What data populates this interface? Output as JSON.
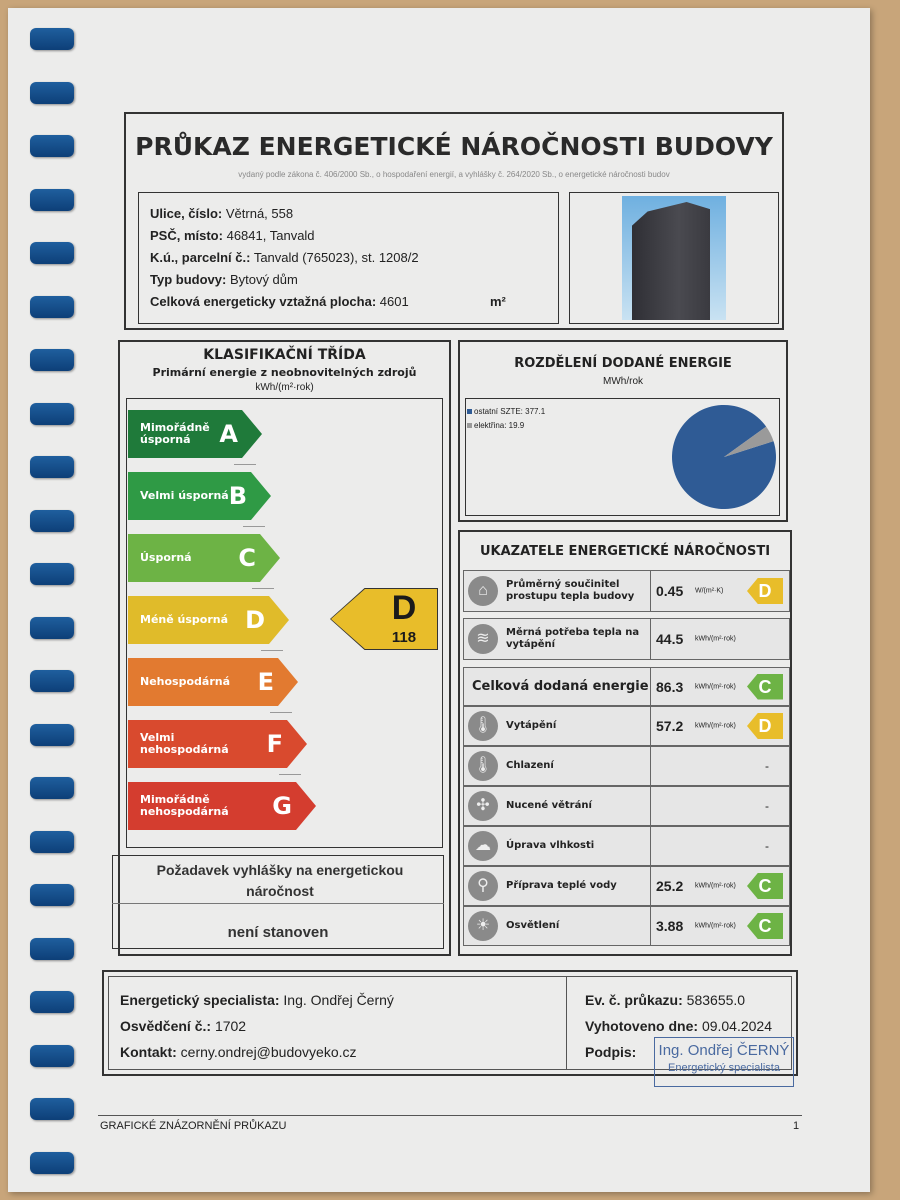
{
  "header": {
    "title": "PRŮKAZ ENERGETICKÉ NÁROČNOSTI BUDOVY",
    "subtitle": "vydaný podle zákona č. 406/2000 Sb., o hospodaření energií, a vyhlášky č. 264/2020 Sb., o energetické náročnosti budov"
  },
  "info": [
    {
      "label": "Ulice, číslo:",
      "value": "Větrná, 558"
    },
    {
      "label": "PSČ, místo:",
      "value": "46841, Tanvald"
    },
    {
      "label": "K.ú., parcelní č.:",
      "value": "Tanvald (765023), st. 1208/2"
    },
    {
      "label": "Typ budovy:",
      "value": "Bytový dům"
    },
    {
      "label": "Celková energeticky vztažná plocha:",
      "value": "4601",
      "unit": "m²"
    }
  ],
  "classification": {
    "title": "KLASIFIKAČNÍ TŘÍDA",
    "subtitle": "Primární energie z neobnovitelných zdrojů",
    "unit": "kWh/(m²·rok)",
    "classes": [
      {
        "letter": "A",
        "label": "Mimořádně úsporná",
        "color": "#1f7a3a"
      },
      {
        "letter": "B",
        "label": "Velmi úsporná",
        "color": "#2f9a45"
      },
      {
        "letter": "C",
        "label": "Úsporná",
        "color": "#6db345"
      },
      {
        "letter": "D",
        "label": "Méně úsporná",
        "color": "#e0bb2a"
      },
      {
        "letter": "E",
        "label": "Nehospodárná",
        "color": "#e27a30"
      },
      {
        "letter": "F",
        "label": "Velmi nehospodárná",
        "color": "#d94a2e"
      },
      {
        "letter": "G",
        "label": "Mimořádně nehospodárná",
        "color": "#d43d2f"
      }
    ],
    "rating": {
      "letter": "D",
      "value": "118",
      "color": "#e8bd2a"
    }
  },
  "requirement": {
    "text": "Požadavek vyhlášky na energetickou náročnost",
    "value": "není stanoven"
  },
  "distribution": {
    "title": "ROZDĚLENÍ DODANÉ ENERGIE",
    "unit": "MWh/rok",
    "items": [
      {
        "label": "ostatní SZTE: 377.1",
        "value": 377.1,
        "color": "#2f5b95"
      },
      {
        "label": "elektřina: 19.9",
        "value": 19.9,
        "color": "#9a9a9a"
      }
    ]
  },
  "indicators": {
    "title": "UKAZATELE ENERGETICKÉ NÁROČNOSTI",
    "rows": [
      {
        "icon": "house-icon",
        "glyph": "⌂",
        "name": "Průměrný součinitel prostupu tepla budovy",
        "value": "0.45",
        "unit": "W/(m²·K)",
        "class": "D",
        "color": "#e8bd2a"
      },
      {
        "icon": "heat-demand-icon",
        "glyph": "≋",
        "name": "Měrná potřeba tepla na vytápění",
        "value": "44.5",
        "unit": "kWh/(m²·rok)",
        "class": "",
        "color": ""
      },
      {
        "icon": "",
        "glyph": "",
        "name": "Celková dodaná energie",
        "value": "86.3",
        "unit": "kWh/(m²·rok)",
        "class": "C",
        "color": "#6db345"
      },
      {
        "icon": "thermometer-plus-icon",
        "glyph": "🌡",
        "name": "Vytápění",
        "value": "57.2",
        "unit": "kWh/(m²·rok)",
        "class": "D",
        "color": "#e8bd2a"
      },
      {
        "icon": "thermometer-minus-icon",
        "glyph": "🌡",
        "name": "Chlazení",
        "value": "",
        "unit": "",
        "class": "-",
        "color": ""
      },
      {
        "icon": "fan-icon",
        "glyph": "✣",
        "name": "Nucené větrání",
        "value": "",
        "unit": "",
        "class": "-",
        "color": ""
      },
      {
        "icon": "humidity-icon",
        "glyph": "☁",
        "name": "Úprava vlhkosti",
        "value": "",
        "unit": "",
        "class": "-",
        "color": ""
      },
      {
        "icon": "tap-icon",
        "glyph": "⚲",
        "name": "Příprava teplé vody",
        "value": "25.2",
        "unit": "kWh/(m²·rok)",
        "class": "C",
        "color": "#6db345"
      },
      {
        "icon": "light-bulb-icon",
        "glyph": "☀",
        "name": "Osvětlení",
        "value": "3.88",
        "unit": "kWh/(m²·rok)",
        "class": "C",
        "color": "#6db345"
      }
    ]
  },
  "footer": {
    "specialist_label": "Energetický specialista:",
    "specialist": "Ing. Ondřej Černý",
    "cert_label": "Osvědčení č.:",
    "cert": "1702",
    "contact_label": "Kontakt:",
    "contact": "cerny.ondrej@budovyeko.cz",
    "ev_label": "Ev. č. průkazu:",
    "ev": "583655.0",
    "date_label": "Vyhotoveno dne:",
    "date": "09.04.2024",
    "sign_label": "Podpis:",
    "stamp_name": "Ing. Ondřej ČERNÝ",
    "stamp_role": "Energetický specialista"
  },
  "page_footer": {
    "text": "GRAFICKÉ ZNÁZORNĚNÍ PRŮKAZU",
    "page": "1"
  }
}
